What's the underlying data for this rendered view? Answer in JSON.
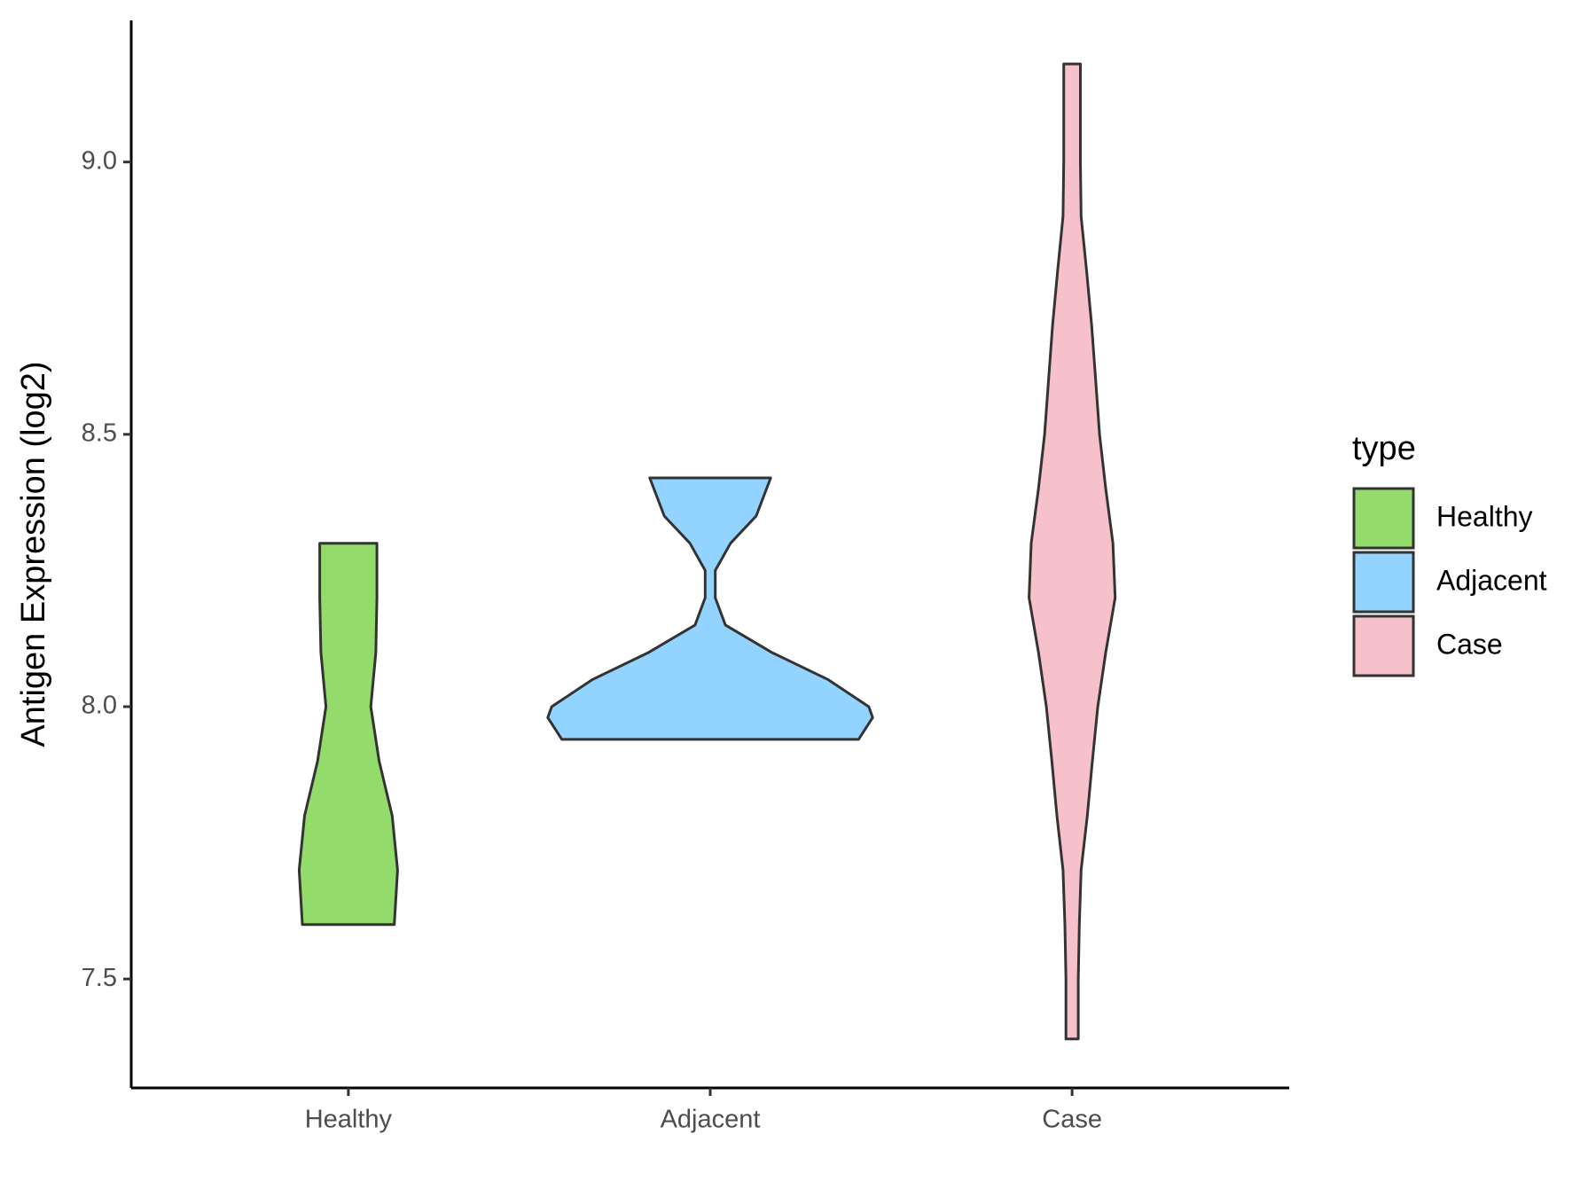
{
  "chart_data": {
    "type": "violin",
    "ylabel": "Antigen Expression (log2)",
    "categories": [
      "Healthy",
      "Adjacent",
      "Case"
    ],
    "ylim": [
      7.3,
      9.26
    ],
    "yticks": [
      {
        "value": 7.5,
        "label": "7.5"
      },
      {
        "value": 8,
        "label": "8.0"
      },
      {
        "value": 8.5,
        "label": "8.5"
      },
      {
        "value": 9,
        "label": "9.0"
      }
    ],
    "legend_title": "type",
    "series": [
      {
        "name": "Healthy",
        "color": "#93db6a",
        "y": [
          7.6,
          7.7,
          7.8,
          7.9,
          8.0,
          8.1,
          8.2,
          8.3
        ],
        "density": [
          0.127,
          0.136,
          0.121,
          0.085,
          0.062,
          0.076,
          0.079,
          0.079
        ]
      },
      {
        "name": "Adjacent",
        "color": "#93d3ff",
        "y": [
          7.94,
          7.98,
          8.0,
          8.05,
          8.1,
          8.15,
          8.2,
          8.25,
          8.3,
          8.35,
          8.42
        ],
        "density": [
          0.41,
          0.449,
          0.438,
          0.325,
          0.169,
          0.042,
          0.014,
          0.014,
          0.056,
          0.127,
          0.167
        ]
      },
      {
        "name": "Case",
        "color": "#f7c1cc",
        "y": [
          7.39,
          7.5,
          7.6,
          7.7,
          7.8,
          7.9,
          8.0,
          8.1,
          8.2,
          8.3,
          8.4,
          8.5,
          8.6,
          8.7,
          8.8,
          8.9,
          9.0,
          9.1,
          9.18
        ],
        "density": [
          0.017,
          0.017,
          0.02,
          0.025,
          0.042,
          0.056,
          0.071,
          0.093,
          0.119,
          0.113,
          0.093,
          0.076,
          0.065,
          0.054,
          0.04,
          0.025,
          0.023,
          0.023,
          0.023
        ]
      }
    ]
  }
}
